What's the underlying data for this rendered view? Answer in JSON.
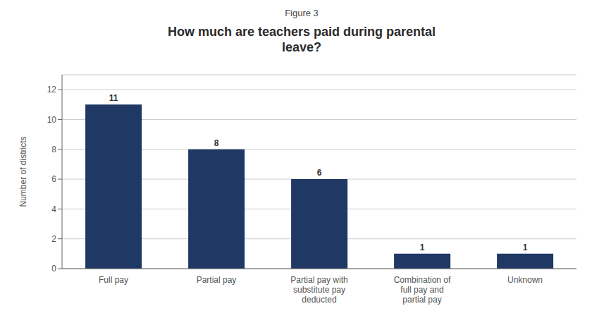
{
  "chart_data": {
    "type": "bar",
    "subtitle": "Figure 3",
    "title": "How much are teachers paid during parental\nleave?",
    "categories": [
      "Full pay",
      "Partial pay",
      "Partial pay with\nsubstitute pay\ndeducted",
      "Combination of\nfull pay and\npartial pay",
      "Unknown"
    ],
    "values": [
      11,
      8,
      6,
      1,
      1
    ],
    "color": "#1f3864",
    "ylabel": "Number of districts",
    "ylim": [
      0,
      13
    ],
    "yticks": [
      0,
      2,
      4,
      6,
      8,
      10,
      12
    ],
    "grid": true,
    "data_labels": true
  }
}
